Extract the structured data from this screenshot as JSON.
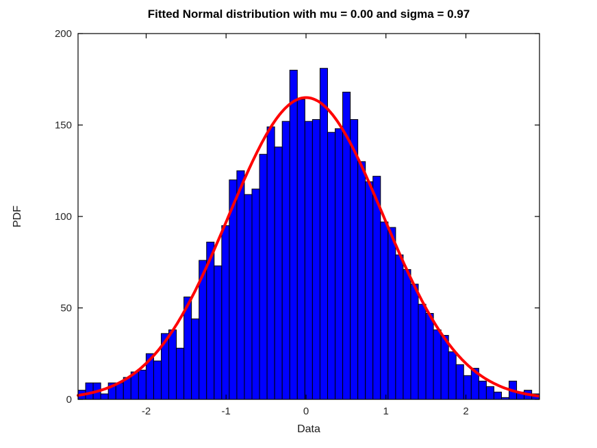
{
  "title": "Fitted Normal distribution with mu = 0.00 and sigma = 0.97",
  "x_axis_label": "Data",
  "y_axis_label": "PDF",
  "colors": {
    "bar_fill": "#0000FF",
    "bar_edge": "#000000",
    "curve": "#FF0000",
    "axis": "#000000",
    "tick_text": "#262626",
    "background": "#FFFFFF"
  },
  "chart_data": {
    "type": "bar",
    "subtype": "histogram_with_normal_fit",
    "title": "Fitted Normal distribution with mu = 0.00 and sigma = 0.97",
    "xlabel": "Data",
    "ylabel": "PDF",
    "xlim": [
      -2.852,
      2.921
    ],
    "ylim": [
      0,
      200
    ],
    "x_ticks": [
      -2,
      -1,
      0,
      1,
      2
    ],
    "y_ticks": [
      0,
      50,
      100,
      150,
      200
    ],
    "grid": false,
    "legend": false,
    "bin_start": -2.852,
    "bin_width": 0.0946,
    "counts": [
      5,
      9,
      9,
      3,
      9,
      9,
      12,
      15,
      16,
      25,
      21,
      36,
      38,
      28,
      56,
      44,
      76,
      86,
      73,
      95,
      120,
      125,
      112,
      115,
      134,
      149,
      138,
      152,
      180,
      164,
      152,
      153,
      181,
      146,
      148,
      168,
      153,
      130,
      119,
      122,
      97,
      94,
      79,
      71,
      63,
      52,
      47,
      38,
      35,
      26,
      19,
      13,
      17,
      10,
      7,
      4,
      1,
      10,
      4,
      5,
      3
    ],
    "fit_curve": {
      "name": "Normal fit",
      "mu": 0.0,
      "sigma": 0.97,
      "peak_count": 165
    }
  }
}
